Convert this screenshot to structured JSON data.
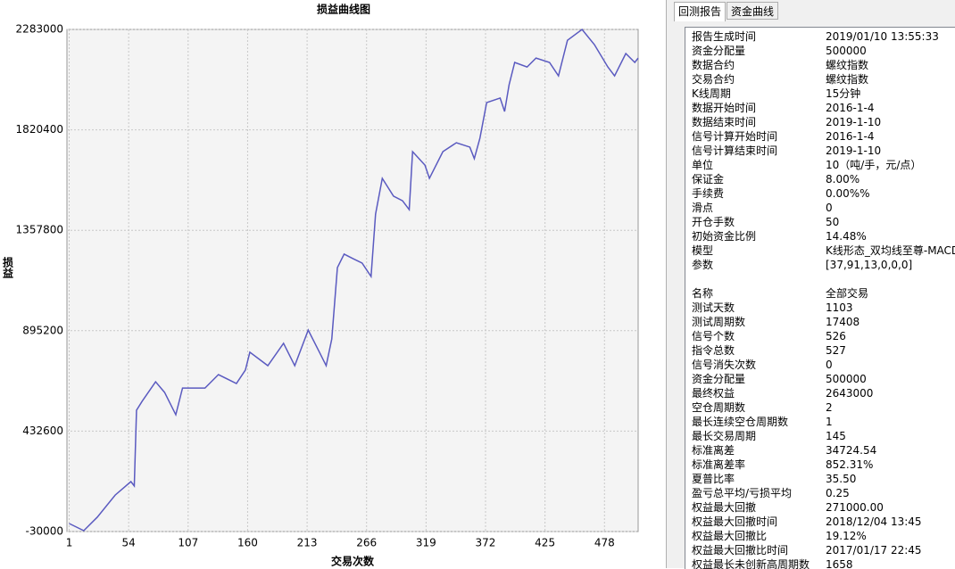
{
  "chart_data": {
    "type": "line",
    "title": "损益曲线图",
    "x_label": "交易次数",
    "y_label": "损益",
    "x": [
      1,
      14,
      26,
      42,
      56,
      59,
      61,
      66,
      78,
      86,
      96,
      102,
      122,
      134,
      150,
      158,
      162,
      178,
      192,
      202,
      214,
      224,
      230,
      235,
      240,
      246,
      254,
      262,
      270,
      274,
      280,
      290,
      298,
      304,
      307,
      318,
      322,
      334,
      346,
      358,
      362,
      367,
      373,
      385,
      389,
      393,
      398,
      409,
      417,
      429,
      437,
      445,
      458,
      469,
      481,
      487,
      497,
      505,
      508
    ],
    "series": [
      {
        "name": "损益",
        "color": "#5a5ac0",
        "values": [
          7000,
          -26000,
          36000,
          138000,
          200000,
          180000,
          529000,
          570000,
          660000,
          611000,
          508000,
          631000,
          631000,
          693000,
          652000,
          714000,
          796000,
          734000,
          837000,
          734000,
          898000,
          796000,
          734000,
          857000,
          1186000,
          1248000,
          1227000,
          1207000,
          1145000,
          1432000,
          1597000,
          1515000,
          1494000,
          1453000,
          1720000,
          1658000,
          1597000,
          1720000,
          1761000,
          1741000,
          1688000,
          1782000,
          1946000,
          1967000,
          1905000,
          2028000,
          2131000,
          2110000,
          2151000,
          2131000,
          2069000,
          2233000,
          2283000,
          2213000,
          2110000,
          2069000,
          2172000,
          2131000,
          2151000
        ]
      }
    ],
    "xlim": [
      -1,
      508
    ],
    "xticks": [
      1,
      54,
      107,
      160,
      213,
      266,
      319,
      372,
      425,
      478
    ],
    "ylim": [
      -30000,
      2283000
    ],
    "yticks": [
      -30000,
      432600,
      895200,
      1357800,
      1820400,
      2283000
    ],
    "grid": true
  },
  "tabs": [
    "回测报告",
    "资金曲线"
  ],
  "report": {
    "section1": [
      [
        "报告生成时间",
        "2019/01/10 13:55:33"
      ],
      [
        "资金分配量",
        "500000"
      ],
      [
        "数据合约",
        "螺纹指数"
      ],
      [
        "交易合约",
        "螺纹指数"
      ],
      [
        "K线周期",
        "15分钟"
      ],
      [
        "数据开始时间",
        "2016-1-4"
      ],
      [
        "数据结束时间",
        "2019-1-10"
      ],
      [
        "信号计算开始时间",
        "2016-1-4"
      ],
      [
        "信号计算结束时间",
        "2019-1-10"
      ],
      [
        "单位",
        "10（吨/手，元/点）"
      ],
      [
        "保证金",
        "8.00%"
      ],
      [
        "手续费",
        "0.00%%"
      ],
      [
        "滑点",
        "0"
      ],
      [
        "开仓手数",
        "50"
      ],
      [
        "初始资金比例",
        "14.48%"
      ],
      [
        "模型",
        "K线形态_双均线至尊-MACD"
      ],
      [
        "参数",
        "[37,91,13,0,0,0]"
      ]
    ],
    "section2": [
      [
        "名称",
        "全部交易"
      ],
      [
        "测试天数",
        "1103"
      ],
      [
        "测试周期数",
        "17408"
      ],
      [
        "信号个数",
        "526"
      ],
      [
        "指令总数",
        "527"
      ],
      [
        "信号消失次数",
        "0"
      ],
      [
        "资金分配量",
        "500000"
      ],
      [
        "最终权益",
        "2643000"
      ],
      [
        "空仓周期数",
        "2"
      ],
      [
        "最长连续空仓周期数",
        "1"
      ],
      [
        "最长交易周期",
        "145"
      ],
      [
        "标准离差",
        "34724.54"
      ],
      [
        "标准离差率",
        "852.31%"
      ],
      [
        "夏普比率",
        "35.50"
      ],
      [
        "盈亏总平均/亏损平均",
        "0.25"
      ],
      [
        "权益最大回撤",
        "271000.00"
      ],
      [
        "权益最大回撤时间",
        "2018/12/04 13:45"
      ],
      [
        "权益最大回撤比",
        "19.12%"
      ],
      [
        "权益最大回撤比时间",
        "2017/01/17 22:45"
      ],
      [
        "权益最长未创新高周期数",
        "1658"
      ]
    ]
  }
}
